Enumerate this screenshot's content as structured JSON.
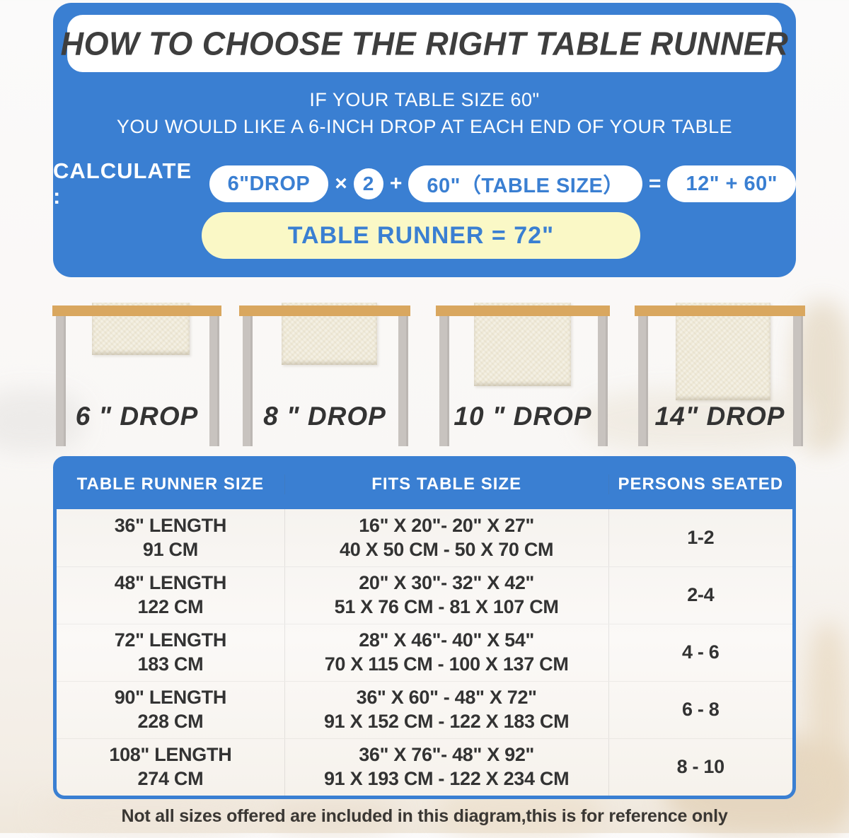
{
  "colors": {
    "panel_blue": "#3a7fd2",
    "banner_white": "#ffffff",
    "result_yellow": "#faf8c6",
    "title_dark": "#3e3e3e",
    "tabletop_tan": "#d9a75f",
    "leg_gray": "#c8c3bf",
    "runner_cream": "#efe9d7",
    "body_text": "#333333"
  },
  "hero": {
    "title": "HOW TO CHOOSE THE RIGHT TABLE RUNNER",
    "line1": "IF YOUR TABLE SIZE 60\"",
    "line2": "YOU WOULD LIKE A 6-INCH DROP AT EACH END OF YOUR TABLE",
    "calc": {
      "label": "CALCULATE :",
      "drop_pill": "6\"DROP",
      "times": "×",
      "multiplier": "2",
      "plus": "+",
      "table_size_pill": "60\"（TABLE SIZE）",
      "equals": "=",
      "sum_pill": "12\" + 60\"",
      "result": "TABLE RUNNER = 72\""
    }
  },
  "illustrations": [
    {
      "label": "6 \" DROP"
    },
    {
      "label": "8 \" DROP"
    },
    {
      "label": "10 \" DROP"
    },
    {
      "label": "14\" DROP"
    }
  ],
  "size_table": {
    "headers": [
      "TABLE RUNNER SIZE",
      "FITS TABLE SIZE",
      "PERSONS SEATED"
    ],
    "rows": [
      {
        "runner_in": "36\" LENGTH",
        "runner_cm": "91 CM",
        "fits_in": "16\" X 20\"- 20\" X 27\"",
        "fits_cm": "40 X 50 CM - 50 X 70 CM",
        "persons": "1-2"
      },
      {
        "runner_in": "48\" LENGTH",
        "runner_cm": "122 CM",
        "fits_in": "20\" X 30\"- 32\" X 42\"",
        "fits_cm": "51 X 76 CM - 81 X 107 CM",
        "persons": "2-4"
      },
      {
        "runner_in": "72\" LENGTH",
        "runner_cm": "183 CM",
        "fits_in": "28\" X 46\"- 40\" X 54\"",
        "fits_cm": "70 X 115 CM - 100 X 137 CM",
        "persons": "4 - 6"
      },
      {
        "runner_in": "90\" LENGTH",
        "runner_cm": "228 CM",
        "fits_in": "36\" X 60\" - 48\" X 72\"",
        "fits_cm": "91 X 152 CM - 122 X 183 CM",
        "persons": "6 - 8"
      },
      {
        "runner_in": "108\" LENGTH",
        "runner_cm": "274 CM",
        "fits_in": "36\" X 76\"- 48\" X 92\"",
        "fits_cm": "91 X 193 CM - 122 X 234 CM",
        "persons": "8 - 10"
      }
    ]
  },
  "footer_note": "Not all sizes offered are included in this diagram,this is for reference only"
}
